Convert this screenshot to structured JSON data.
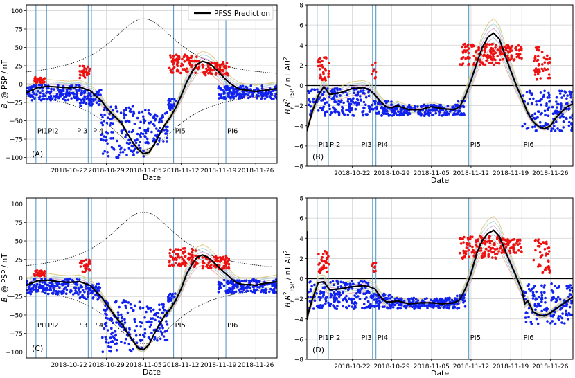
{
  "figure": {
    "legend_label": "PFSS Prediction"
  },
  "colors": {
    "measured_positive": "#ee1111",
    "measured_negative": "#1122ee",
    "prediction": "#000000",
    "pi_lines": "#5b9ac6",
    "ensemble": [
      "#e8a0a0",
      "#9fc5a0",
      "#a0b0e0",
      "#c8b890",
      "#d0a0d0",
      "#a0d0d0",
      "#d8c070"
    ]
  },
  "chart_data": [
    {
      "type": "line",
      "panel_label": "(A)",
      "xlabel": "Date",
      "ylabel": "B_r @ PSP / nT",
      "ylim": [
        -108,
        108
      ],
      "yticks": [
        -100,
        -75,
        -50,
        -25,
        0,
        25,
        50,
        75,
        100
      ],
      "ytick_labels": [
        "−100",
        "−75",
        "−50",
        "−25",
        "0",
        "25",
        "50",
        "75",
        "100"
      ],
      "xlim_days": [
        -8,
        39
      ],
      "xticks_days": [
        0,
        7,
        14,
        21,
        28,
        35
      ],
      "xtick_labels": [
        "2018-10-22",
        "2018-10-29",
        "2018-11-05",
        "2018-11-12",
        "2018-11-19",
        "2018-11-26"
      ],
      "pi_markers": [
        {
          "label": "PI1",
          "days": [
            -6.2
          ]
        },
        {
          "label": "PI2",
          "days": [
            -4.2
          ]
        },
        {
          "label": "PI3",
          "days": [
            3.6
          ]
        },
        {
          "label": "PI4",
          "days": [
            4.2
          ]
        },
        {
          "label": "PI5",
          "days": [
            19.6
          ]
        },
        {
          "label": "PI6",
          "days": [
            29.4
          ]
        }
      ],
      "pi_label_value": -63,
      "envelope": {
        "peak_day": 14,
        "peak_value": 89,
        "base_value": 7,
        "width_days": 8
      },
      "prediction": {
        "days": [
          -8,
          -6,
          -4,
          -2,
          0,
          2,
          4,
          5,
          6,
          7,
          8,
          9,
          10,
          11,
          12,
          13,
          14,
          15,
          16,
          17,
          18,
          19,
          20,
          21,
          22,
          23,
          24,
          25,
          26,
          27,
          28,
          29,
          30,
          31,
          32,
          33,
          34,
          35,
          36,
          37,
          39
        ],
        "values": [
          -12,
          -5,
          -3,
          -4,
          -5,
          -4,
          -9,
          -16,
          -22,
          -32,
          -40,
          -47,
          -55,
          -68,
          -80,
          -89,
          -95,
          -93,
          -82,
          -68,
          -55,
          -45,
          -32,
          -16,
          2,
          16,
          27,
          31,
          29,
          24,
          17,
          9,
          2,
          -3,
          -7,
          -8,
          -9,
          -10,
          -9,
          -8,
          -6
        ]
      },
      "measured": {
        "positive": {
          "ranges": [
            [
              -6.5,
              -4.5,
              2,
              10
            ],
            [
              2.0,
              4.0,
              8,
              25
            ],
            [
              18.8,
              24.5,
              15,
              40
            ],
            [
              25.0,
              30.0,
              12,
              30
            ]
          ]
        },
        "negative": {
          "ranges": [
            [
              -8.0,
              2.0,
              -22,
              -1
            ],
            [
              2.0,
              6.0,
              -30,
              -8
            ],
            [
              6.0,
              14.0,
              -100,
              -30
            ],
            [
              14.0,
              18.5,
              -85,
              -35
            ],
            [
              18.5,
              20.0,
              -35,
              -20
            ],
            [
              28.0,
              39.0,
              -20,
              -2
            ]
          ]
        }
      }
    },
    {
      "type": "line",
      "panel_label": "(B)",
      "xlabel": "Date",
      "ylabel": "B_r R²_PSP / nT AU²",
      "ylim": [
        -8,
        8
      ],
      "yticks": [
        -8,
        -6,
        -4,
        -2,
        0,
        2,
        4,
        6,
        8
      ],
      "ytick_labels": [
        "−8",
        "−6",
        "−4",
        "−2",
        "0",
        "2",
        "4",
        "6",
        "8"
      ],
      "xlim_days": [
        -8,
        39
      ],
      "xticks_days": [
        0,
        7,
        14,
        21,
        28,
        35
      ],
      "xtick_labels": [
        "2018-10-22",
        "2018-10-29",
        "2018-11-05",
        "2018-11-12",
        "2018-11-19",
        "2018-11-26"
      ],
      "pi_markers": [
        {
          "label": "PI1",
          "days": [
            -6.2
          ]
        },
        {
          "label": "PI2",
          "days": [
            -4.2
          ]
        },
        {
          "label": "PI3",
          "days": [
            3.6
          ]
        },
        {
          "label": "PI4",
          "days": [
            4.2
          ]
        },
        {
          "label": "PI5",
          "days": [
            20.6
          ]
        },
        {
          "label": "PI6",
          "days": [
            30.0
          ]
        }
      ],
      "pi_label_value": -5.8,
      "prediction": {
        "days": [
          -8,
          -7,
          -6,
          -5,
          -4,
          -2,
          0,
          2,
          3,
          4,
          5,
          6,
          7,
          8,
          10,
          12,
          14,
          16,
          18,
          19,
          20,
          21,
          22,
          23,
          24,
          25,
          26,
          27,
          28,
          29,
          30,
          31,
          32,
          33,
          34,
          35,
          36,
          37,
          38,
          39
        ],
        "values": [
          -4.5,
          -2.5,
          -1.0,
          -0.1,
          -0.9,
          -0.7,
          -0.3,
          -0.2,
          -0.4,
          -0.9,
          -1.6,
          -2.1,
          -2.2,
          -2.0,
          -2.4,
          -2.4,
          -2.1,
          -2.3,
          -2.4,
          -2.1,
          -1.0,
          0.5,
          2.2,
          3.8,
          4.8,
          5.2,
          4.6,
          3.0,
          1.5,
          0.0,
          -1.3,
          -2.7,
          -3.6,
          -4.1,
          -4.3,
          -4.0,
          -3.2,
          -2.6,
          -2.1,
          -1.8
        ]
      },
      "measured": {
        "positive": {
          "ranges": [
            [
              -6.0,
              -4.0,
              0.5,
              2.8
            ],
            [
              3.5,
              4.2,
              0.5,
              2.3
            ],
            [
              19.0,
              26.0,
              2.0,
              4.2
            ],
            [
              26.0,
              30.0,
              2.5,
              4.0
            ],
            [
              32.0,
              35.0,
              0.5,
              4.0
            ]
          ]
        },
        "negative": {
          "ranges": [
            [
              -8.0,
              3.0,
              -3.0,
              -0.2
            ],
            [
              3.0,
              7.0,
              -3.0,
              -1.5
            ],
            [
              7.0,
              18.5,
              -3.0,
              -1.9
            ],
            [
              18.5,
              20.0,
              -3.0,
              -1.5
            ],
            [
              30.0,
              39.0,
              -4.5,
              -0.5
            ]
          ]
        }
      }
    },
    {
      "type": "line",
      "panel_label": "(C)",
      "xlabel": "Date",
      "ylabel": "B_r @ PSP / nT",
      "ylim": [
        -108,
        108
      ],
      "yticks": [
        -100,
        -75,
        -50,
        -25,
        0,
        25,
        50,
        75,
        100
      ],
      "ytick_labels": [
        "−100",
        "−75",
        "−50",
        "−25",
        "0",
        "25",
        "50",
        "75",
        "100"
      ],
      "xlim_days": [
        -8,
        39
      ],
      "xticks_days": [
        0,
        7,
        14,
        21,
        28,
        35
      ],
      "xtick_labels": [
        "2018-10-22",
        "2018-10-29",
        "2018-11-05",
        "2018-11-12",
        "2018-11-19",
        "2018-11-26"
      ],
      "pi_markers": [
        {
          "label": "PI1",
          "days": [
            -6.2
          ]
        },
        {
          "label": "PI2",
          "days": [
            -4.2
          ]
        },
        {
          "label": "PI3",
          "days": [
            3.6
          ]
        },
        {
          "label": "PI4",
          "days": [
            4.2
          ]
        },
        {
          "label": "PI5",
          "days": [
            19.6
          ]
        },
        {
          "label": "PI6",
          "days": [
            29.4
          ]
        }
      ],
      "pi_label_value": -63,
      "envelope": {
        "peak_day": 14,
        "peak_value": 89,
        "base_value": 7,
        "width_days": 8
      },
      "prediction": {
        "days": [
          -8,
          -6,
          -4,
          -2,
          0,
          2,
          4,
          5,
          6,
          7,
          8,
          9,
          10,
          11,
          12,
          13,
          14,
          15,
          16,
          17,
          18,
          19,
          20,
          21,
          22,
          23,
          24,
          25,
          26,
          27,
          28,
          29,
          30,
          31,
          32,
          33,
          34,
          35,
          36,
          37,
          39
        ],
        "values": [
          -10,
          -4,
          -3,
          -5,
          -6,
          -5,
          -10,
          -18,
          -25,
          -35,
          -45,
          -55,
          -63,
          -75,
          -85,
          -95,
          -97,
          -90,
          -75,
          -62,
          -50,
          -42,
          -30,
          -15,
          5,
          18,
          28,
          31,
          28,
          22,
          15,
          8,
          2,
          -5,
          -8,
          -9,
          -9,
          -10,
          -8,
          -7,
          -5
        ]
      },
      "measured": {
        "positive": {
          "ranges": [
            [
              -6.5,
              -4.5,
              2,
              10
            ],
            [
              2.0,
              4.0,
              8,
              25
            ],
            [
              18.8,
              24.5,
              15,
              40
            ],
            [
              25.0,
              30.0,
              12,
              30
            ]
          ]
        },
        "negative": {
          "ranges": [
            [
              -8.0,
              2.0,
              -22,
              -1
            ],
            [
              2.0,
              6.0,
              -30,
              -8
            ],
            [
              6.0,
              14.0,
              -100,
              -30
            ],
            [
              14.0,
              18.5,
              -85,
              -35
            ],
            [
              18.5,
              20.0,
              -35,
              -20
            ],
            [
              28.0,
              39.0,
              -20,
              -2
            ]
          ]
        }
      }
    },
    {
      "type": "line",
      "panel_label": "(D)",
      "xlabel": "Date",
      "ylabel": "B_r R²_PSP / nT AU²",
      "ylim": [
        -8,
        8
      ],
      "yticks": [
        -8,
        -6,
        -4,
        -2,
        0,
        2,
        4,
        6,
        8
      ],
      "ytick_labels": [
        "−8",
        "−6",
        "−4",
        "−2",
        "0",
        "2",
        "4",
        "6",
        "8"
      ],
      "xlim_days": [
        -8,
        39
      ],
      "xticks_days": [
        0,
        7,
        14,
        21,
        28,
        35
      ],
      "xtick_labels": [
        "2018-10-22",
        "2018-10-29",
        "2018-11-05",
        "2018-11-12",
        "2018-11-19",
        "2018-11-26"
      ],
      "pi_markers": [
        {
          "label": "PI1",
          "days": [
            -6.2
          ]
        },
        {
          "label": "PI2",
          "days": [
            -4.2
          ]
        },
        {
          "label": "PI3",
          "days": [
            3.6
          ]
        },
        {
          "label": "PI4",
          "days": [
            4.2
          ]
        },
        {
          "label": "PI5",
          "days": [
            20.6
          ]
        },
        {
          "label": "PI6",
          "days": [
            30.0
          ]
        }
      ],
      "pi_label_value": -5.8,
      "prediction": {
        "days": [
          -8,
          -7.9,
          -7.8,
          -7,
          -6,
          -5,
          -4,
          -2,
          0,
          2,
          3,
          4,
          5,
          6,
          7,
          8,
          10,
          12,
          14,
          16,
          18,
          19,
          20,
          21,
          22,
          23,
          24,
          25,
          26,
          27,
          28,
          29,
          30,
          30.5,
          31,
          32,
          33,
          34,
          35,
          36,
          37,
          38,
          39
        ],
        "values": [
          4.7,
          -4.0,
          -3.5,
          -2.0,
          -0.4,
          -0.3,
          -1.1,
          -1.0,
          -0.8,
          -0.7,
          -0.8,
          -1.0,
          -1.8,
          -2.3,
          -2.3,
          -2.2,
          -2.5,
          -2.4,
          -2.4,
          -2.5,
          -2.4,
          -2.1,
          -1.0,
          0.5,
          2.5,
          3.8,
          4.5,
          4.8,
          4.2,
          2.8,
          1.5,
          0.2,
          -1.2,
          -2.5,
          -2.2,
          -3.3,
          -3.6,
          -3.7,
          -3.4,
          -3.0,
          -2.6,
          -2.2,
          -1.8
        ]
      },
      "measured": {
        "positive": {
          "ranges": [
            [
              -6.0,
              -4.0,
              0.5,
              2.8
            ],
            [
              3.5,
              4.2,
              0.5,
              2.3
            ],
            [
              19.0,
              26.0,
              2.0,
              4.2
            ],
            [
              26.0,
              30.0,
              2.5,
              4.0
            ],
            [
              32.0,
              35.0,
              0.5,
              4.0
            ]
          ]
        },
        "negative": {
          "ranges": [
            [
              -8.0,
              3.0,
              -3.0,
              -0.2
            ],
            [
              3.0,
              7.0,
              -3.0,
              -1.5
            ],
            [
              7.0,
              18.5,
              -3.0,
              -1.9
            ],
            [
              18.5,
              20.0,
              -3.0,
              -1.5
            ],
            [
              30.0,
              39.0,
              -4.5,
              -0.5
            ]
          ]
        }
      }
    }
  ]
}
